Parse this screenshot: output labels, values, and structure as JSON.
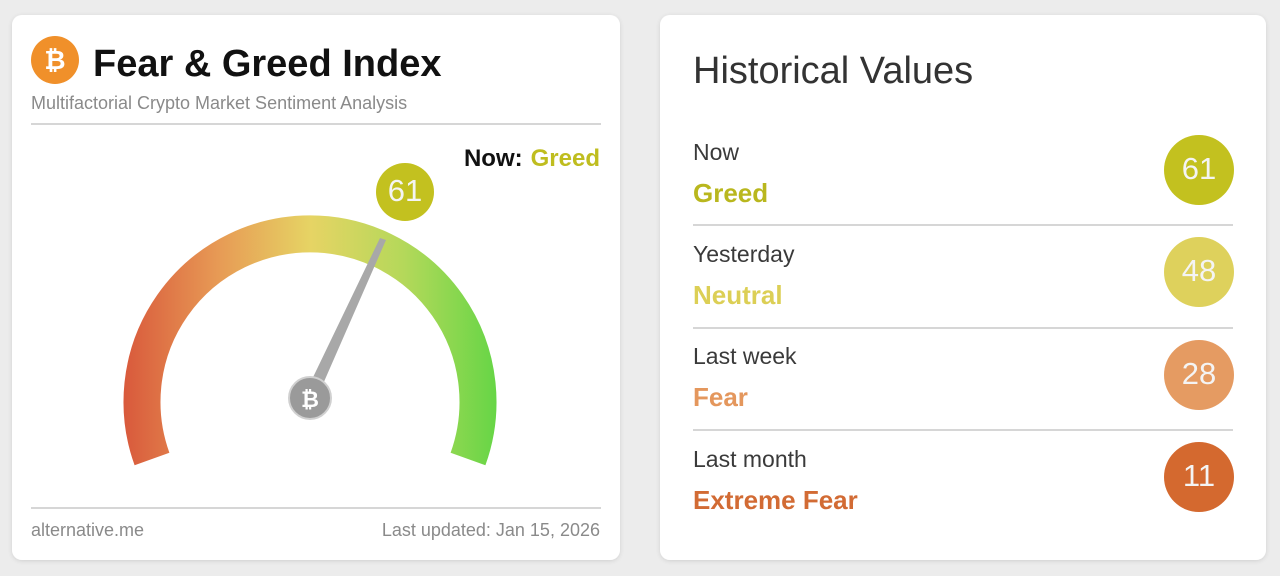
{
  "fear_greed": {
    "title": "Fear & Greed Index",
    "subtitle": "Multifactorial Crypto Market Sentiment Analysis",
    "now_label": "Now:",
    "now_status": "Greed",
    "value": 61,
    "source": "alternative.me",
    "updated": "Last updated: Jan 15, 2026"
  },
  "historical": {
    "title": "Historical Values",
    "items": [
      {
        "period": "Now",
        "status": "Greed",
        "value": 61
      },
      {
        "period": "Yesterday",
        "status": "Neutral",
        "value": 48
      },
      {
        "period": "Last week",
        "status": "Fear",
        "value": 28
      },
      {
        "period": "Last month",
        "status": "Extreme Fear",
        "value": 11
      }
    ]
  }
}
